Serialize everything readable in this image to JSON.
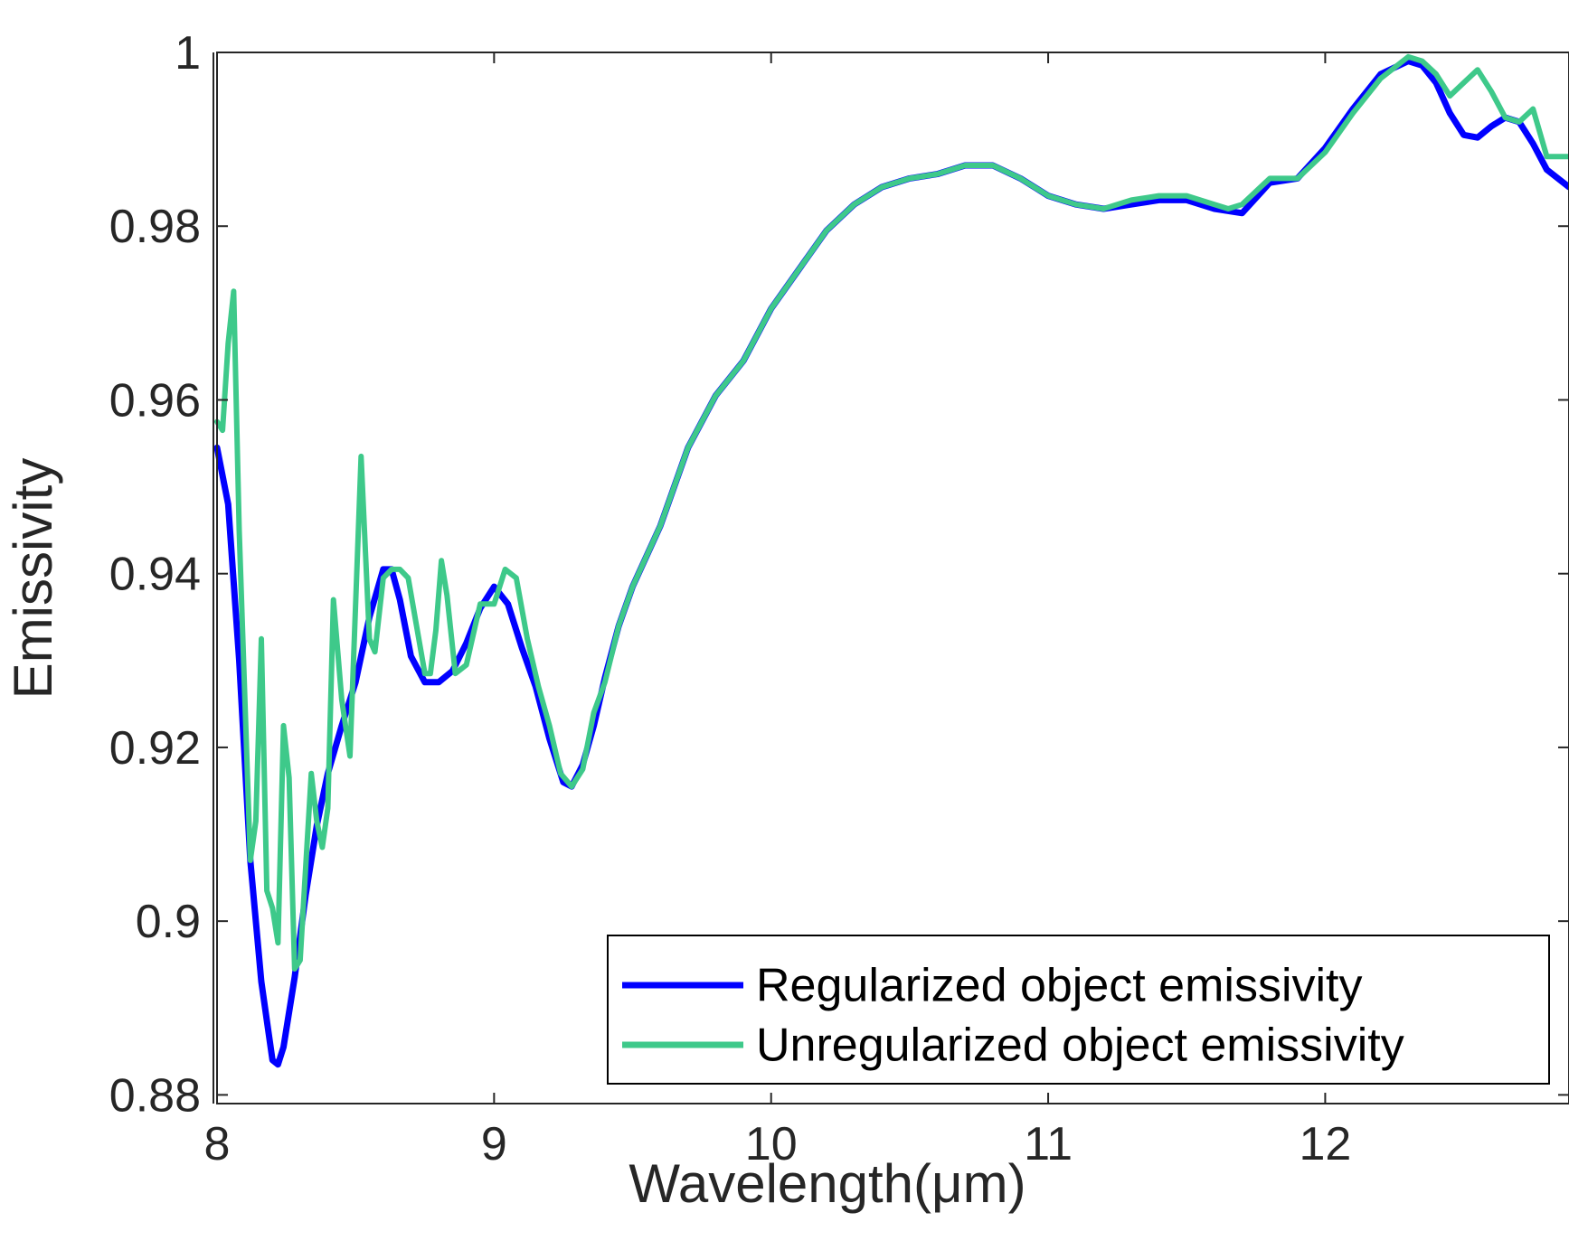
{
  "chart_data": {
    "type": "line",
    "title": "",
    "xlabel": "Wavelength(μm)",
    "ylabel": "Emissivity",
    "xlim": [
      8,
      12.88
    ],
    "ylim": [
      0.879,
      1.0
    ],
    "grid": false,
    "legend_position": "bottom-right",
    "xticks": [
      8,
      9,
      10,
      11,
      12
    ],
    "xtick_labels": [
      "8",
      "9",
      "10",
      "11",
      "12"
    ],
    "yticks": [
      0.88,
      0.9,
      0.92,
      0.94,
      0.96,
      0.98,
      1.0
    ],
    "ytick_labels": [
      "0.88",
      "0.9",
      "0.92",
      "0.94",
      "0.96",
      "0.98",
      "1"
    ],
    "series": [
      {
        "name": "Regularized object emissivity",
        "color": "#0000ff",
        "x": [
          8.0,
          8.04,
          8.08,
          8.12,
          8.16,
          8.2,
          8.22,
          8.24,
          8.28,
          8.32,
          8.36,
          8.4,
          8.45,
          8.5,
          8.55,
          8.6,
          8.63,
          8.66,
          8.7,
          8.75,
          8.8,
          8.85,
          8.9,
          8.95,
          9.0,
          9.05,
          9.1,
          9.15,
          9.2,
          9.25,
          9.28,
          9.32,
          9.36,
          9.4,
          9.45,
          9.5,
          9.6,
          9.7,
          9.8,
          9.9,
          10.0,
          10.1,
          10.2,
          10.3,
          10.4,
          10.5,
          10.6,
          10.7,
          10.8,
          10.9,
          11.0,
          11.1,
          11.2,
          11.3,
          11.4,
          11.5,
          11.6,
          11.7,
          11.8,
          11.9,
          12.0,
          12.1,
          12.2,
          12.3,
          12.35,
          12.4,
          12.45,
          12.5,
          12.55,
          12.6,
          12.65,
          12.7,
          12.75,
          12.8,
          12.88
        ],
        "y": [
          0.9545,
          0.948,
          0.93,
          0.907,
          0.893,
          0.884,
          0.8835,
          0.8855,
          0.8935,
          0.903,
          0.911,
          0.917,
          0.9225,
          0.9275,
          0.935,
          0.9405,
          0.9405,
          0.937,
          0.9305,
          0.9275,
          0.9275,
          0.9288,
          0.932,
          0.936,
          0.9385,
          0.9365,
          0.9315,
          0.927,
          0.921,
          0.916,
          0.9155,
          0.918,
          0.9225,
          0.928,
          0.934,
          0.9385,
          0.9455,
          0.9545,
          0.9605,
          0.9645,
          0.9705,
          0.975,
          0.9795,
          0.9825,
          0.9845,
          0.9855,
          0.986,
          0.987,
          0.987,
          0.9855,
          0.9835,
          0.9825,
          0.982,
          0.9825,
          0.983,
          0.983,
          0.982,
          0.9815,
          0.985,
          0.9855,
          0.989,
          0.9935,
          0.9975,
          0.999,
          0.9985,
          0.9965,
          0.993,
          0.9905,
          0.9902,
          0.9915,
          0.9925,
          0.992,
          0.9895,
          0.9865,
          0.9845
        ]
      },
      {
        "name": "Unregularized object emissivity",
        "color": "#3ec98a",
        "x": [
          8.0,
          8.02,
          8.04,
          8.06,
          8.08,
          8.12,
          8.14,
          8.16,
          8.18,
          8.2,
          8.22,
          8.24,
          8.26,
          8.28,
          8.3,
          8.34,
          8.36,
          8.38,
          8.4,
          8.42,
          8.45,
          8.48,
          8.52,
          8.55,
          8.57,
          8.6,
          8.63,
          8.66,
          8.69,
          8.72,
          8.75,
          8.77,
          8.79,
          8.81,
          8.83,
          8.86,
          8.9,
          8.95,
          9.0,
          9.04,
          9.08,
          9.12,
          9.16,
          9.2,
          9.24,
          9.28,
          9.32,
          9.36,
          9.4,
          9.45,
          9.5,
          9.6,
          9.7,
          9.8,
          9.9,
          10.0,
          10.1,
          10.2,
          10.3,
          10.4,
          10.5,
          10.6,
          10.7,
          10.8,
          10.9,
          11.0,
          11.1,
          11.2,
          11.3,
          11.4,
          11.5,
          11.6,
          11.65,
          11.7,
          11.8,
          11.9,
          12.0,
          12.1,
          12.2,
          12.3,
          12.35,
          12.4,
          12.45,
          12.5,
          12.55,
          12.6,
          12.65,
          12.7,
          12.75,
          12.8,
          12.88
        ],
        "y": [
          0.9575,
          0.9565,
          0.9665,
          0.9725,
          0.945,
          0.907,
          0.9115,
          0.9325,
          0.9035,
          0.9015,
          0.8975,
          0.9225,
          0.9165,
          0.8945,
          0.8955,
          0.917,
          0.9115,
          0.9085,
          0.913,
          0.937,
          0.9255,
          0.919,
          0.9535,
          0.9325,
          0.931,
          0.9395,
          0.9405,
          0.9405,
          0.9395,
          0.934,
          0.9285,
          0.9285,
          0.9335,
          0.9415,
          0.9375,
          0.9285,
          0.9295,
          0.9365,
          0.9365,
          0.9405,
          0.9395,
          0.9325,
          0.927,
          0.9225,
          0.917,
          0.9155,
          0.9175,
          0.924,
          0.9275,
          0.934,
          0.9385,
          0.9455,
          0.9545,
          0.9605,
          0.9645,
          0.9705,
          0.975,
          0.9795,
          0.9825,
          0.9845,
          0.9855,
          0.986,
          0.987,
          0.987,
          0.9855,
          0.9835,
          0.9825,
          0.982,
          0.983,
          0.9835,
          0.9835,
          0.9825,
          0.982,
          0.9825,
          0.9855,
          0.9855,
          0.9885,
          0.993,
          0.997,
          0.9995,
          0.999,
          0.9975,
          0.995,
          0.9965,
          0.998,
          0.9955,
          0.9925,
          0.992,
          0.9935,
          0.988,
          0.988
        ]
      }
    ]
  }
}
